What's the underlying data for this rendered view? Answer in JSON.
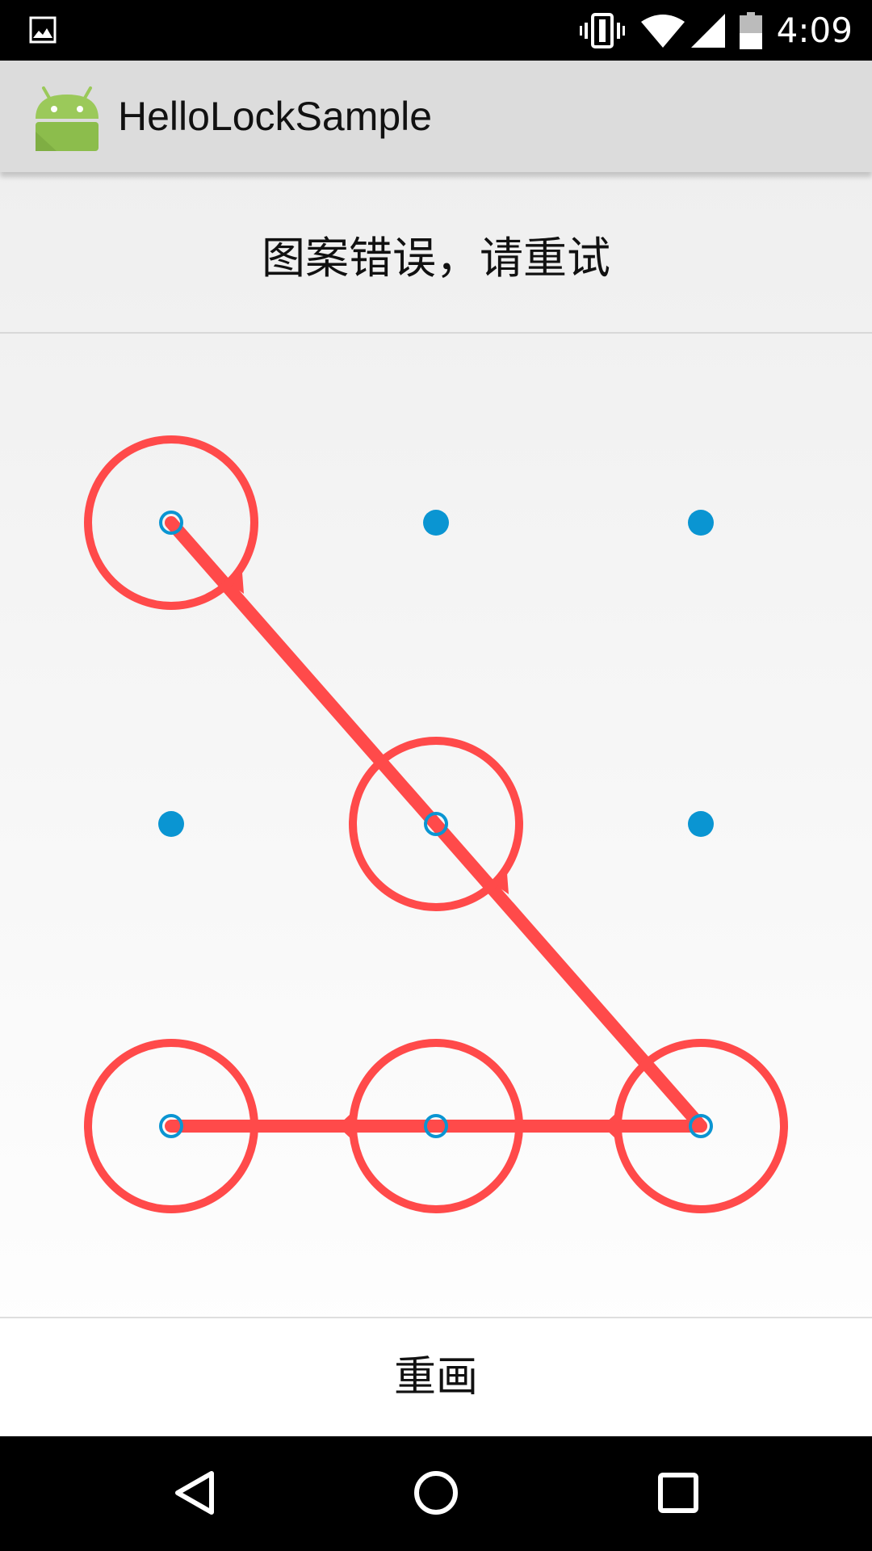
{
  "status_bar": {
    "time": "4:09",
    "icons": [
      "gallery-icon",
      "vibrate-icon",
      "wifi-icon",
      "signal-icon",
      "battery-icon"
    ]
  },
  "app_bar": {
    "title": "HelloLockSample",
    "logo_icon": "android-logo-icon"
  },
  "message": {
    "text": "图案错误，请重试"
  },
  "pattern": {
    "state": "error",
    "error_color": "#ff4a4a",
    "dot_color": "#0a95d2",
    "grid_rows": 3,
    "grid_cols": 3,
    "selected_sequence": [
      1,
      5,
      9,
      8,
      7
    ],
    "note": "dots numbered 1-9 left-to-right, top-to-bottom"
  },
  "actions": {
    "redraw_label": "重画"
  },
  "nav_bar": {
    "icons": [
      "back-icon",
      "home-icon",
      "recents-icon"
    ]
  }
}
